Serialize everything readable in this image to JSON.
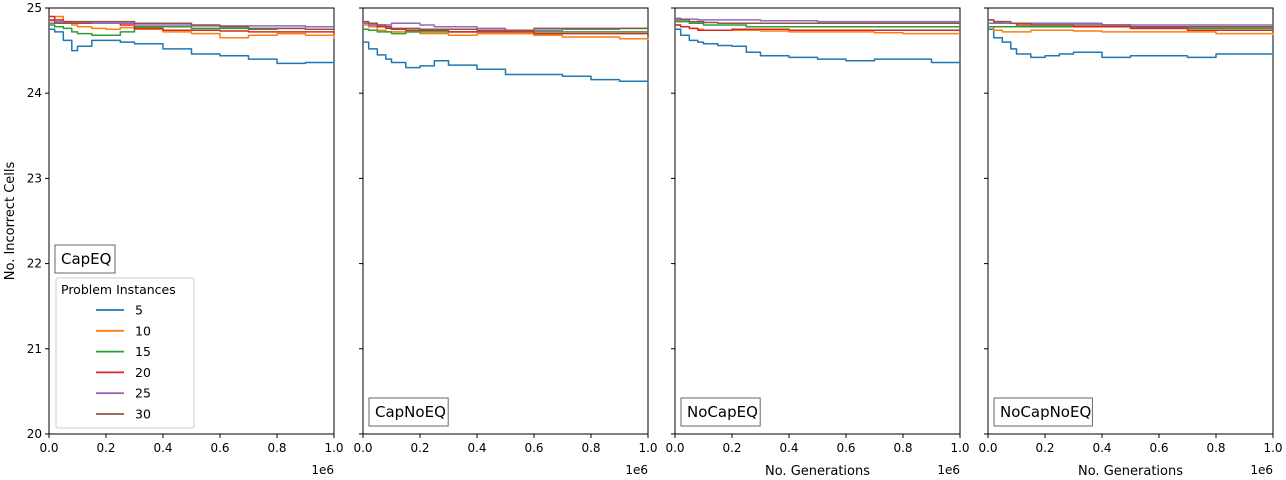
{
  "figure": {
    "ylabel": "No. Incorrect Cells",
    "legend_title": "Problem Instances",
    "legend_location": "lower-left of first panel"
  },
  "chart_data": [
    {
      "type": "line",
      "title": "CapEQ",
      "xlabel": "",
      "ylabel": "No. Incorrect Cells",
      "x_offset_label": "1e6",
      "xlim": [
        0,
        1.0
      ],
      "ylim": [
        20,
        25
      ],
      "xticks": [
        "0.0",
        "0.2",
        "0.4",
        "0.6",
        "0.8",
        "1.0"
      ],
      "yticks": [
        "20",
        "21",
        "22",
        "23",
        "24",
        "25"
      ],
      "x": [
        0,
        0.02,
        0.05,
        0.08,
        0.1,
        0.15,
        0.2,
        0.25,
        0.3,
        0.4,
        0.5,
        0.6,
        0.7,
        0.8,
        0.9,
        1.0
      ],
      "series": [
        {
          "name": "5",
          "color": "#1f77b4",
          "values": [
            24.75,
            24.72,
            24.62,
            24.5,
            24.55,
            24.62,
            24.62,
            24.6,
            24.58,
            24.52,
            24.46,
            24.44,
            24.4,
            24.35,
            24.36,
            24.33
          ]
        },
        {
          "name": "10",
          "color": "#ff7f0e",
          "values": [
            24.85,
            24.9,
            24.82,
            24.8,
            24.78,
            24.76,
            24.75,
            24.77,
            24.75,
            24.72,
            24.7,
            24.65,
            24.68,
            24.7,
            24.68,
            24.64
          ]
        },
        {
          "name": "15",
          "color": "#2ca02c",
          "values": [
            24.8,
            24.78,
            24.76,
            24.72,
            24.7,
            24.68,
            24.68,
            24.72,
            24.78,
            24.78,
            24.76,
            24.76,
            24.75,
            24.76,
            24.75,
            24.73
          ]
        },
        {
          "name": "20",
          "color": "#d62728",
          "values": [
            24.9,
            24.86,
            24.84,
            24.82,
            24.82,
            24.82,
            24.82,
            24.8,
            24.76,
            24.74,
            24.74,
            24.73,
            24.72,
            24.72,
            24.72,
            24.7
          ]
        },
        {
          "name": "25",
          "color": "#9467bd",
          "values": [
            24.82,
            24.84,
            24.82,
            24.83,
            24.83,
            24.82,
            24.82,
            24.82,
            24.8,
            24.8,
            24.79,
            24.79,
            24.79,
            24.79,
            24.78,
            24.78
          ]
        },
        {
          "name": "30",
          "color": "#8c564b",
          "values": [
            24.86,
            24.82,
            24.82,
            24.84,
            24.84,
            24.84,
            24.84,
            24.84,
            24.82,
            24.82,
            24.8,
            24.78,
            24.76,
            24.76,
            24.75,
            24.74
          ]
        }
      ]
    },
    {
      "type": "line",
      "title": "CapNoEQ",
      "xlabel": "",
      "ylabel": "",
      "x_offset_label": "1e6",
      "xlim": [
        0,
        1.0
      ],
      "ylim": [
        20,
        25
      ],
      "xticks": [
        "0.0",
        "0.2",
        "0.4",
        "0.6",
        "0.8",
        "1.0"
      ],
      "yticks": [
        "",
        "",
        "",
        "",
        "",
        ""
      ],
      "x": [
        0,
        0.02,
        0.05,
        0.08,
        0.1,
        0.15,
        0.2,
        0.25,
        0.3,
        0.4,
        0.5,
        0.6,
        0.7,
        0.8,
        0.9,
        1.0
      ],
      "series": [
        {
          "name": "5",
          "color": "#1f77b4",
          "values": [
            24.6,
            24.52,
            24.45,
            24.4,
            24.36,
            24.3,
            24.32,
            24.38,
            24.33,
            24.28,
            24.22,
            24.22,
            24.2,
            24.16,
            24.14,
            24.1
          ]
        },
        {
          "name": "10",
          "color": "#ff7f0e",
          "values": [
            24.8,
            24.78,
            24.74,
            24.72,
            24.72,
            24.72,
            24.7,
            24.7,
            24.68,
            24.7,
            24.7,
            24.68,
            24.66,
            24.66,
            24.64,
            24.62
          ]
        },
        {
          "name": "15",
          "color": "#2ca02c",
          "values": [
            24.75,
            24.74,
            24.72,
            24.72,
            24.7,
            24.72,
            24.72,
            24.72,
            24.72,
            24.72,
            24.72,
            24.72,
            24.72,
            24.72,
            24.72,
            24.72
          ]
        },
        {
          "name": "20",
          "color": "#d62728",
          "values": [
            24.82,
            24.8,
            24.78,
            24.76,
            24.75,
            24.74,
            24.74,
            24.74,
            24.72,
            24.72,
            24.72,
            24.7,
            24.7,
            24.7,
            24.7,
            24.7
          ]
        },
        {
          "name": "25",
          "color": "#9467bd",
          "values": [
            24.82,
            24.8,
            24.8,
            24.8,
            24.82,
            24.82,
            24.8,
            24.78,
            24.78,
            24.76,
            24.74,
            24.74,
            24.75,
            24.75,
            24.76,
            24.76
          ]
        },
        {
          "name": "30",
          "color": "#8c564b",
          "values": [
            24.84,
            24.82,
            24.8,
            24.78,
            24.76,
            24.76,
            24.75,
            24.75,
            24.75,
            24.74,
            24.74,
            24.76,
            24.76,
            24.76,
            24.76,
            24.76
          ]
        }
      ]
    },
    {
      "type": "line",
      "title": "NoCapEQ",
      "xlabel": "No. Generations",
      "ylabel": "",
      "x_offset_label": "1e6",
      "xlim": [
        0,
        1.0
      ],
      "ylim": [
        20,
        25
      ],
      "xticks": [
        "0.0",
        "0.2",
        "0.4",
        "0.6",
        "0.8",
        "1.0"
      ],
      "yticks": [
        "",
        "",
        "",
        "",
        "",
        ""
      ],
      "x": [
        0,
        0.02,
        0.05,
        0.08,
        0.1,
        0.15,
        0.2,
        0.25,
        0.3,
        0.4,
        0.5,
        0.6,
        0.7,
        0.8,
        0.9,
        1.0
      ],
      "series": [
        {
          "name": "5",
          "color": "#1f77b4",
          "values": [
            24.75,
            24.68,
            24.62,
            24.6,
            24.58,
            24.56,
            24.55,
            24.48,
            24.44,
            24.42,
            24.4,
            24.38,
            24.4,
            24.4,
            24.36,
            24.37
          ]
        },
        {
          "name": "10",
          "color": "#ff7f0e",
          "values": [
            24.8,
            24.78,
            24.76,
            24.75,
            24.74,
            24.74,
            24.74,
            24.74,
            24.73,
            24.72,
            24.72,
            24.72,
            24.71,
            24.7,
            24.7,
            24.7
          ]
        },
        {
          "name": "15",
          "color": "#2ca02c",
          "values": [
            24.84,
            24.84,
            24.82,
            24.82,
            24.8,
            24.8,
            24.8,
            24.78,
            24.78,
            24.78,
            24.78,
            24.78,
            24.78,
            24.78,
            24.78,
            24.78
          ]
        },
        {
          "name": "20",
          "color": "#d62728",
          "values": [
            24.8,
            24.78,
            24.76,
            24.74,
            24.74,
            24.74,
            24.75,
            24.75,
            24.75,
            24.74,
            24.74,
            24.74,
            24.74,
            24.74,
            24.74,
            24.74
          ]
        },
        {
          "name": "25",
          "color": "#9467bd",
          "values": [
            24.88,
            24.87,
            24.87,
            24.86,
            24.86,
            24.86,
            24.86,
            24.86,
            24.85,
            24.85,
            24.84,
            24.84,
            24.84,
            24.84,
            24.84,
            24.84
          ]
        },
        {
          "name": "30",
          "color": "#8c564b",
          "values": [
            24.86,
            24.86,
            24.84,
            24.84,
            24.83,
            24.82,
            24.82,
            24.82,
            24.82,
            24.82,
            24.82,
            24.82,
            24.82,
            24.82,
            24.82,
            24.82
          ]
        }
      ]
    },
    {
      "type": "line",
      "title": "NoCapNoEQ",
      "xlabel": "No. Generations",
      "ylabel": "",
      "x_offset_label": "1e6",
      "xlim": [
        0,
        1.0
      ],
      "ylim": [
        20,
        25
      ],
      "xticks": [
        "0.0",
        "0.2",
        "0.4",
        "0.6",
        "0.8",
        "1.0"
      ],
      "yticks": [
        "",
        "",
        "",
        "",
        "",
        ""
      ],
      "x": [
        0,
        0.02,
        0.05,
        0.08,
        0.1,
        0.15,
        0.2,
        0.25,
        0.3,
        0.4,
        0.5,
        0.6,
        0.7,
        0.8,
        0.9,
        1.0
      ],
      "series": [
        {
          "name": "5",
          "color": "#1f77b4",
          "values": [
            24.75,
            24.65,
            24.6,
            24.52,
            24.46,
            24.42,
            24.44,
            24.46,
            24.48,
            24.42,
            24.44,
            24.44,
            24.42,
            24.46,
            24.46,
            24.42
          ]
        },
        {
          "name": "10",
          "color": "#ff7f0e",
          "values": [
            24.78,
            24.74,
            24.72,
            24.72,
            24.72,
            24.74,
            24.74,
            24.74,
            24.73,
            24.72,
            24.72,
            24.72,
            24.72,
            24.7,
            24.7,
            24.68
          ]
        },
        {
          "name": "15",
          "color": "#2ca02c",
          "values": [
            24.78,
            24.78,
            24.78,
            24.78,
            24.78,
            24.78,
            24.78,
            24.78,
            24.78,
            24.78,
            24.76,
            24.76,
            24.76,
            24.76,
            24.76,
            24.76
          ]
        },
        {
          "name": "20",
          "color": "#d62728",
          "values": [
            24.86,
            24.84,
            24.82,
            24.82,
            24.8,
            24.8,
            24.8,
            24.8,
            24.78,
            24.78,
            24.76,
            24.76,
            24.74,
            24.74,
            24.74,
            24.74
          ]
        },
        {
          "name": "25",
          "color": "#9467bd",
          "values": [
            24.82,
            24.82,
            24.82,
            24.82,
            24.82,
            24.82,
            24.82,
            24.82,
            24.82,
            24.8,
            24.8,
            24.8,
            24.8,
            24.8,
            24.8,
            24.8
          ]
        },
        {
          "name": "30",
          "color": "#8c564b",
          "values": [
            24.86,
            24.84,
            24.84,
            24.82,
            24.82,
            24.8,
            24.8,
            24.8,
            24.8,
            24.8,
            24.78,
            24.78,
            24.78,
            24.78,
            24.78,
            24.78
          ]
        }
      ]
    }
  ]
}
